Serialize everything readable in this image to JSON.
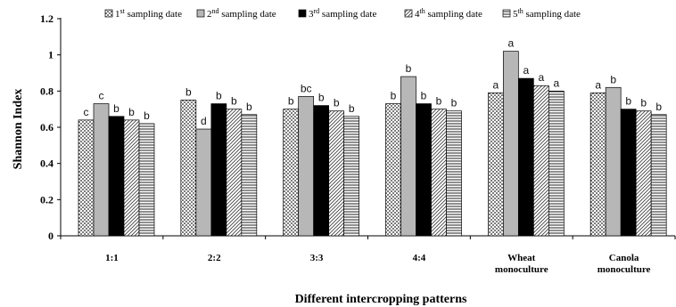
{
  "chart_data": {
    "type": "bar",
    "title": "",
    "xlabel": "Different intercropping patterns",
    "ylabel": "Shannon Index",
    "ylim": [
      0,
      1.2
    ],
    "yticks": [
      "0",
      "0.2",
      "0.4",
      "0.6",
      "0.8",
      "1",
      "1.2"
    ],
    "ytick_values": [
      0,
      0.2,
      0.4,
      0.6,
      0.8,
      1.0,
      1.2
    ],
    "grid": false,
    "legend_position": "top",
    "categories": [
      [
        "1:1"
      ],
      [
        "2:2"
      ],
      [
        "3:3"
      ],
      [
        "4:4"
      ],
      [
        "Wheat",
        "monoculture"
      ],
      [
        "Canola",
        "monoculture"
      ]
    ],
    "series": [
      {
        "name": "1st sampling date",
        "legend": {
          "num": "1",
          "sup": "st",
          "text": "sampling date"
        },
        "pattern": "dots",
        "values": [
          0.64,
          0.75,
          0.7,
          0.73,
          0.79,
          0.79
        ],
        "letters": [
          "c",
          "b",
          "b",
          "b",
          "a",
          "a"
        ]
      },
      {
        "name": "2nd sampling date",
        "legend": {
          "num": "2",
          "sup": "nd",
          "text": "sampling date"
        },
        "pattern": "gray",
        "values": [
          0.73,
          0.59,
          0.77,
          0.88,
          1.02,
          0.82
        ],
        "letters": [
          "c",
          "d",
          "bc",
          "b",
          "a",
          "b"
        ]
      },
      {
        "name": "3rd sampling date",
        "legend": {
          "num": "3",
          "sup": "rd",
          "text": "sampling date"
        },
        "pattern": "black",
        "values": [
          0.66,
          0.73,
          0.72,
          0.73,
          0.87,
          0.7
        ],
        "letters": [
          "b",
          "b",
          "b",
          "b",
          "a",
          "b"
        ]
      },
      {
        "name": "4th sampling date",
        "legend": {
          "num": "4",
          "sup": "th",
          "text": "sampling date"
        },
        "pattern": "diagonal",
        "values": [
          0.64,
          0.7,
          0.69,
          0.7,
          0.83,
          0.69
        ],
        "letters": [
          "b",
          "b",
          "b",
          "b",
          "a",
          "b"
        ]
      },
      {
        "name": "5th sampling date",
        "legend": {
          "num": "5",
          "sup": "th",
          "text": "sampling date"
        },
        "pattern": "hlines",
        "values": [
          0.62,
          0.67,
          0.66,
          0.69,
          0.8,
          0.67
        ],
        "letters": [
          "b",
          "b",
          "b",
          "b",
          "a",
          "b"
        ]
      }
    ]
  }
}
